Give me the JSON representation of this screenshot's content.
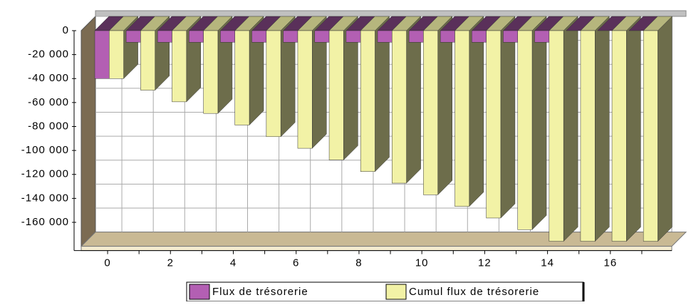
{
  "chart_data": {
    "type": "bar3d",
    "categories": [
      0,
      null,
      2,
      null,
      4,
      null,
      6,
      null,
      8,
      null,
      10,
      null,
      12,
      null,
      14,
      null,
      16,
      null
    ],
    "series": [
      {
        "name": "Flux de trésorerie",
        "color": "#b35fb3",
        "values": [
          -40000,
          -9700,
          -9700,
          -9700,
          -9700,
          -9700,
          -9700,
          -9700,
          -9700,
          -9700,
          -9700,
          -9700,
          -9700,
          -9700,
          -9700,
          0,
          0,
          0
        ]
      },
      {
        "name": "Cumul flux de trésorerie",
        "color": "#f2f2a6",
        "values": [
          -40000,
          -49700,
          -59400,
          -69100,
          -78800,
          -88500,
          -98200,
          -107900,
          -117600,
          -127300,
          -137000,
          -146700,
          -156400,
          -166100,
          -175800,
          -175800,
          -175800,
          -175800
        ]
      }
    ],
    "ylim": [
      -180000,
      0
    ],
    "yticks": [
      0,
      {
        "value": -20000,
        "label": "-20 000"
      },
      {
        "value": -40000,
        "label": "-40 000"
      },
      {
        "value": -60000,
        "label": "-60 000"
      },
      {
        "value": -80000,
        "label": "-80 000"
      },
      {
        "value": -100000,
        "label": "-100 000"
      },
      {
        "value": -120000,
        "label": "-120 000"
      },
      {
        "value": -140000,
        "label": "-140 000"
      },
      {
        "value": -160000,
        "label": "-160 000"
      }
    ],
    "grid": true
  }
}
